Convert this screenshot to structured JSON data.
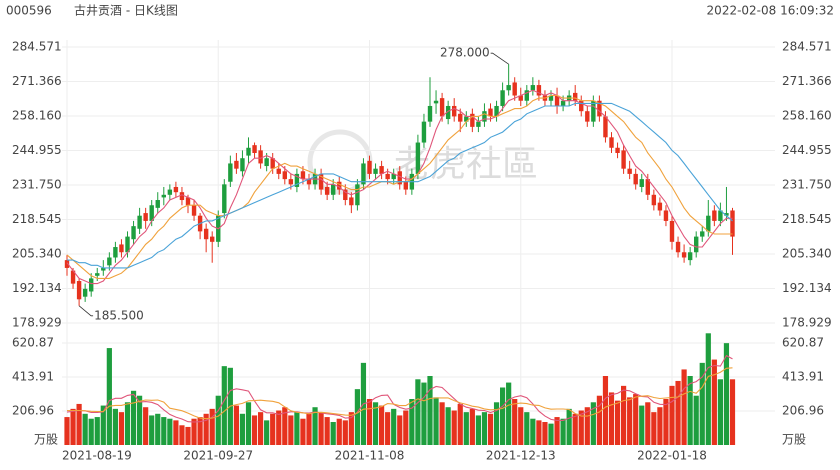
{
  "chart_data": {
    "type": "candlestick",
    "code": "000596",
    "title": "古井贡酒 - 日K线图",
    "timestamp": "2022-02-08 16:09:32",
    "watermark": "老虎社區",
    "up_color": "#1e9e3e",
    "down_color": "#e6321e",
    "grid": true,
    "categories": [
      "2021-08-19",
      null,
      null,
      null,
      null,
      null,
      null,
      null,
      null,
      null,
      null,
      null,
      null,
      null,
      null,
      null,
      null,
      null,
      null,
      null,
      null,
      null,
      null,
      null,
      null,
      "2021-09-27",
      null,
      null,
      null,
      null,
      null,
      null,
      null,
      null,
      null,
      null,
      null,
      null,
      null,
      null,
      null,
      null,
      null,
      null,
      null,
      null,
      null,
      null,
      null,
      null,
      "2021-11-08",
      null,
      null,
      null,
      null,
      null,
      null,
      null,
      null,
      null,
      null,
      null,
      null,
      null,
      null,
      null,
      null,
      null,
      null,
      null,
      null,
      null,
      null,
      null,
      null,
      "2021-12-13",
      null,
      null,
      null,
      null,
      null,
      null,
      null,
      null,
      null,
      null,
      null,
      null,
      null,
      null,
      null,
      null,
      null,
      null,
      null,
      null,
      null,
      null,
      null,
      null,
      "2022-01-18",
      null,
      null,
      null,
      null,
      null,
      null,
      null,
      null,
      null,
      null
    ],
    "open": [
      203,
      199,
      195,
      189,
      191,
      197,
      199,
      201,
      204,
      209,
      206,
      211,
      215,
      221,
      218,
      223,
      227,
      228,
      231,
      229,
      227,
      224,
      220,
      215,
      212,
      210,
      221,
      233,
      241,
      237,
      243,
      247,
      245,
      239,
      242,
      238,
      237,
      234,
      231,
      237,
      234,
      232,
      236,
      231,
      228,
      233,
      230,
      227,
      224,
      232,
      241,
      236,
      239,
      236,
      234,
      237,
      233,
      230,
      236,
      248,
      256,
      263,
      265,
      257,
      262,
      259,
      256,
      259,
      254,
      256,
      261,
      258,
      262,
      268,
      271,
      266,
      264,
      268,
      270,
      266,
      264,
      266,
      262,
      264,
      267,
      264,
      260,
      256,
      264,
      258,
      250,
      246,
      245,
      238,
      236,
      231,
      234,
      228,
      225,
      222,
      218,
      210,
      206,
      203,
      206,
      212,
      214,
      222,
      218,
      220,
      222
    ],
    "high": [
      205,
      200,
      196,
      194,
      198,
      200,
      203,
      206,
      210,
      211,
      214,
      218,
      223,
      223,
      226,
      229,
      231,
      232,
      233,
      231,
      228,
      226,
      221,
      217,
      214,
      222,
      234,
      243,
      244,
      245,
      250,
      248,
      247,
      244,
      244,
      240,
      239,
      236,
      238,
      239,
      236,
      238,
      238,
      233,
      234,
      235,
      232,
      229,
      234,
      242,
      243,
      240,
      241,
      238,
      238,
      239,
      235,
      238,
      251,
      259,
      273,
      268,
      267,
      264,
      265,
      261,
      260,
      261,
      258,
      263,
      263,
      264,
      271,
      278,
      273,
      269,
      270,
      273,
      272,
      268,
      268,
      269,
      266,
      268,
      270,
      266,
      262,
      266,
      266,
      260,
      252,
      248,
      247,
      241,
      238,
      236,
      236,
      230,
      227,
      224,
      220,
      212,
      209,
      208,
      214,
      216,
      226,
      224,
      225,
      231,
      223
    ],
    "low": [
      197,
      192,
      185.5,
      187,
      189,
      195,
      197,
      199,
      202,
      204,
      204,
      209,
      213,
      215,
      216,
      221,
      224,
      226,
      227,
      224,
      221,
      218,
      211,
      206,
      202,
      208,
      219,
      231,
      236,
      235,
      240,
      242,
      238,
      237,
      236,
      234,
      232,
      230,
      229,
      232,
      230,
      230,
      228,
      226,
      226,
      228,
      224,
      221,
      222,
      230,
      234,
      234,
      234,
      232,
      232,
      230,
      228,
      228,
      234,
      246,
      254,
      259,
      256,
      255,
      256,
      252,
      254,
      252,
      252,
      254,
      256,
      256,
      260,
      266,
      264,
      262,
      262,
      266,
      264,
      262,
      262,
      259,
      260,
      262,
      262,
      258,
      254,
      254,
      256,
      248,
      244,
      242,
      236,
      234,
      230,
      229,
      226,
      222,
      220,
      216,
      207,
      204,
      202,
      201,
      204,
      210,
      212,
      216,
      216,
      218,
      205
    ],
    "close": [
      200,
      194,
      188,
      192,
      196,
      198,
      200,
      204,
      208,
      206,
      212,
      216,
      220,
      218,
      224,
      226,
      228,
      230,
      229,
      226,
      224,
      220,
      214,
      211,
      210,
      220,
      232,
      240,
      238,
      242,
      246,
      244,
      240,
      242,
      238,
      236,
      234,
      232,
      236,
      234,
      232,
      236,
      230,
      228,
      232,
      230,
      226,
      224,
      232,
      240,
      236,
      238,
      236,
      234,
      236,
      232,
      230,
      236,
      248,
      256,
      262,
      264,
      258,
      262,
      258,
      256,
      258,
      254,
      256,
      260,
      258,
      262,
      268,
      270,
      266,
      264,
      268,
      270,
      266,
      264,
      266,
      262,
      264,
      266,
      264,
      260,
      256,
      264,
      258,
      250,
      246,
      244,
      238,
      236,
      232,
      234,
      228,
      224,
      222,
      218,
      210,
      206,
      204,
      206,
      212,
      214,
      220,
      218,
      222,
      221,
      212
    ],
    "ylim": [
      178.929,
      284.571
    ],
    "yticks": [
      178.929,
      192.134,
      {
        "value": 205.34,
        "label": "205.340"
      },
      218.545,
      {
        "value": 231.75,
        "label": "231.750"
      },
      244.955,
      {
        "value": 258.16,
        "label": "258.160"
      },
      271.366,
      284.571
    ],
    "annotations": [
      {
        "value": 185.5,
        "label": "185.500"
      },
      {
        "value": 278,
        "label": "278.000"
      }
    ],
    "ma": [
      {
        "color": "#e0567a",
        "values": [
          202,
          199,
          196,
          195,
          194,
          194,
          195,
          198,
          201,
          203,
          206,
          209,
          212,
          214,
          218,
          221,
          223,
          226,
          227,
          228,
          227,
          226,
          223,
          219,
          216,
          215,
          217,
          223,
          228,
          234,
          240,
          242,
          242,
          243,
          242,
          240,
          238,
          236,
          235,
          234,
          234,
          234,
          234,
          232,
          232,
          231,
          229,
          228,
          229,
          230,
          232,
          234,
          236,
          237,
          236,
          235,
          234,
          234,
          236,
          240,
          246,
          253,
          258,
          260,
          261,
          260,
          258,
          258,
          256,
          257,
          257,
          258,
          261,
          264,
          265,
          266,
          267,
          268,
          267,
          266,
          267,
          266,
          264,
          264,
          264,
          263,
          262,
          262,
          260,
          258,
          255,
          252,
          247,
          243,
          239,
          237,
          234,
          231,
          228,
          225,
          220,
          216,
          212,
          209,
          208,
          208,
          211,
          214,
          217,
          219,
          219
        ]
      },
      {
        "color": "#f0a23c",
        "values": [
          205,
          203,
          201,
          199,
          197,
          196,
          196,
          196,
          197,
          198,
          200,
          203,
          206,
          209,
          211,
          214,
          216,
          219,
          221,
          223,
          224,
          224,
          224,
          222,
          221,
          220,
          220,
          221,
          222,
          223,
          225,
          229,
          232,
          235,
          238,
          239,
          240,
          239,
          239,
          238,
          237,
          236,
          235,
          234,
          233,
          232,
          231,
          230,
          230,
          231,
          231,
          232,
          233,
          233,
          232,
          233,
          233,
          234,
          236,
          238,
          240,
          243,
          246,
          249,
          251,
          253,
          256,
          258,
          258,
          259,
          258,
          258,
          259,
          260,
          261,
          261,
          262,
          264,
          265,
          265,
          266,
          266,
          265,
          265,
          265,
          264,
          264,
          264,
          263,
          262,
          260,
          258,
          256,
          253,
          250,
          248,
          244,
          241,
          238,
          234,
          231,
          227,
          223,
          220,
          218,
          216,
          214,
          213,
          213,
          213,
          213
        ]
      },
      {
        "color": "#4aa3d8",
        "values": [
          203,
          203,
          202,
          202,
          201,
          201,
          200,
          200,
          200,
          200,
          200,
          201,
          202,
          203,
          204,
          206,
          207,
          209,
          211,
          212,
          214,
          216,
          217,
          218,
          218,
          219,
          220,
          221,
          222,
          223,
          224,
          225,
          226,
          227,
          228,
          229,
          230,
          231,
          232,
          233,
          234,
          235,
          236,
          236,
          236,
          235,
          234,
          233,
          233,
          233,
          233,
          233,
          233,
          233,
          233,
          233,
          233,
          233,
          233,
          234,
          235,
          237,
          239,
          241,
          242,
          244,
          245,
          246,
          247,
          248,
          250,
          251,
          252,
          254,
          256,
          257,
          259,
          260,
          261,
          262,
          262,
          262,
          262,
          262,
          263,
          263,
          263,
          263,
          263,
          263,
          263,
          262,
          261,
          260,
          258,
          256,
          254,
          252,
          250,
          248,
          245,
          243,
          240,
          237,
          234,
          231,
          228,
          225,
          222,
          220,
          218
        ]
      }
    ],
    "volume": {
      "unit": "万股",
      "values": [
        170,
        220,
        250,
        190,
        160,
        170,
        240,
        590,
        220,
        200,
        260,
        330,
        300,
        230,
        180,
        190,
        170,
        160,
        150,
        120,
        110,
        160,
        170,
        190,
        220,
        300,
        480,
        470,
        240,
        190,
        260,
        180,
        200,
        150,
        190,
        210,
        230,
        180,
        200,
        160,
        190,
        230,
        200,
        170,
        140,
        160,
        150,
        200,
        340,
        500,
        280,
        260,
        240,
        200,
        220,
        180,
        210,
        280,
        400,
        380,
        420,
        290,
        260,
        230,
        210,
        250,
        200,
        220,
        180,
        200,
        190,
        260,
        350,
        380,
        280,
        230,
        200,
        160,
        150,
        140,
        130,
        170,
        160,
        220,
        190,
        210,
        230,
        260,
        300,
        420,
        320,
        270,
        360,
        290,
        310,
        240,
        260,
        200,
        230,
        280,
        360,
        390,
        460,
        420,
        300,
        500,
        680,
        520,
        400,
        620,
        400
      ],
      "ylim": [
        0,
        669.6
      ],
      "yticks": [
        206.96,
        413.91,
        620.87
      ],
      "ma": [
        {
          "color": "#e0567a",
          "values": [
            200,
            205,
            210,
            208,
            198,
            198,
            202,
            270,
            284,
            284,
            302,
            308,
            262,
            264,
            260,
            246,
            214,
            186,
            170,
            158,
            142,
            140,
            142,
            150,
            170,
            210,
            272,
            332,
            342,
            336,
            328,
            268,
            214,
            196,
            196,
            186,
            196,
            202,
            202,
            196,
            194,
            200,
            196,
            190,
            186,
            180,
            164,
            166,
            200,
            250,
            262,
            288,
            302,
            304,
            248,
            228,
            218,
            224,
            258,
            290,
            338,
            356,
            350,
            316,
            282,
            248,
            230,
            222,
            212,
            210,
            198,
            210,
            236,
            276,
            292,
            300,
            288,
            250,
            206,
            176,
            156,
            150,
            150,
            164,
            174,
            188,
            202,
            222,
            238,
            284,
            306,
            314,
            334,
            330,
            312,
            296,
            292,
            260,
            248,
            246,
            264,
            292,
            344,
            374,
            386,
            414,
            472,
            484,
            480,
            544,
            524
          ]
        },
        {
          "color": "#f0a23c",
          "values": [
            210,
            210,
            210,
            208,
            205,
            204,
            204,
            236,
            241,
            241,
            250,
            256,
            266,
            274,
            272,
            274,
            261,
            224,
            217,
            209,
            194,
            177,
            164,
            160,
            164,
            176,
            206,
            237,
            246,
            253,
            269,
            270,
            273,
            269,
            266,
            257,
            232,
            208,
            199,
            196,
            190,
            198,
            199,
            196,
            191,
            187,
            182,
            181,
            195,
            218,
            221,
            226,
            234,
            252,
            249,
            240,
            240,
            261,
            281,
            269,
            283,
            287,
            287,
            287,
            270,
            256,
            247,
            236,
            231,
            220,
            214,
            216,
            223,
            243,
            251,
            255,
            252,
            243,
            241,
            226,
            218,
            219,
            219,
            216,
            192,
            176,
            176,
            186,
            201,
            231,
            245,
            255,
            270,
            276,
            292,
            297,
            300,
            289,
            283,
            286,
            290,
            292,
            311,
            326,
            315,
            353,
            418,
            428,
            443,
            467,
            470
          ]
        }
      ]
    }
  }
}
